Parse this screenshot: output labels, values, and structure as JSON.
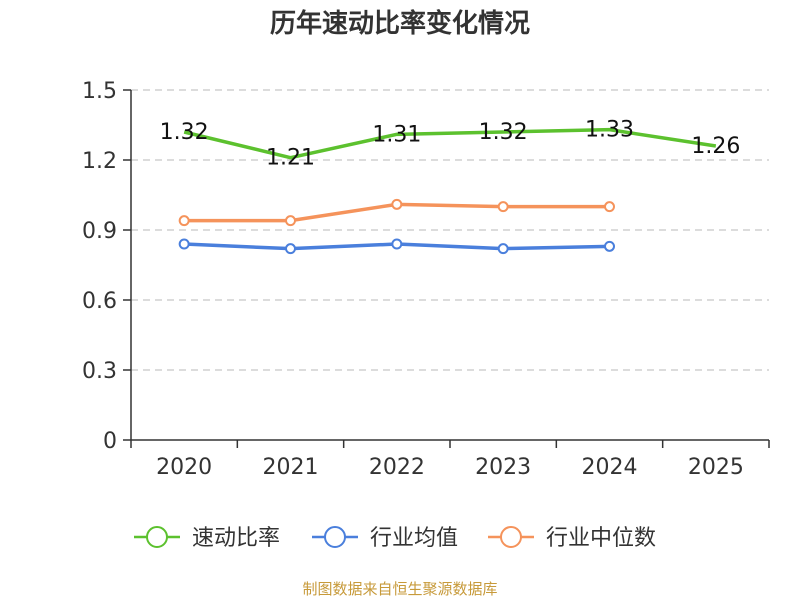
{
  "chart_data": {
    "type": "line",
    "title": "历年速动比率变化情况",
    "categories": [
      "2020",
      "2021",
      "2022",
      "2023",
      "2024",
      "2025"
    ],
    "yticks": [
      "0",
      "0.3",
      "0.6",
      "0.9",
      "1.2",
      "1.5"
    ],
    "ylim": [
      0,
      1.5
    ],
    "grid": true,
    "legend_position": "bottom",
    "series": [
      {
        "name": "速动比率",
        "color": "#5cc12e",
        "values": [
          1.32,
          1.21,
          1.31,
          1.32,
          1.33,
          1.26
        ],
        "labels": [
          "1.32",
          "1.21",
          "1.31",
          "1.32",
          "1.33",
          "1.26"
        ],
        "markers": false,
        "show_labels": true
      },
      {
        "name": "行业均值",
        "color": "#4a7fdc",
        "values": [
          0.84,
          0.82,
          0.84,
          0.82,
          0.83,
          null
        ],
        "markers": true,
        "show_labels": false
      },
      {
        "name": "行业中位数",
        "color": "#f5935b",
        "values": [
          0.94,
          0.94,
          1.01,
          1.0,
          1.0,
          null
        ],
        "markers": true,
        "show_labels": false
      }
    ],
    "source": "制图数据来自恒生聚源数据库"
  }
}
